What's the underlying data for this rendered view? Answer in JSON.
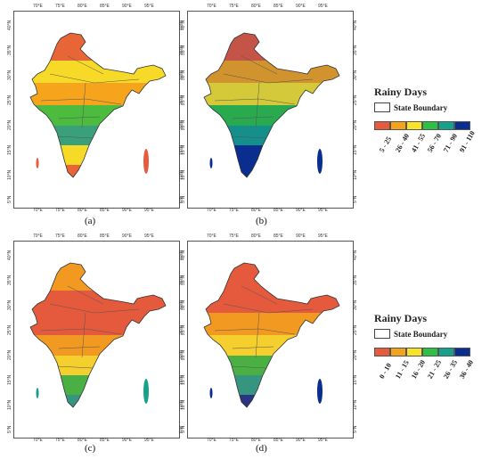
{
  "panels": [
    {
      "label": "(a)",
      "lon_ticks": [
        "70°E",
        "75°E",
        "80°E",
        "85°E",
        "90°E",
        "95°E"
      ],
      "lat_ticks": [
        "40°N",
        "35°N",
        "30°N",
        "25°N",
        "20°N",
        "15°N",
        "10°N",
        "5°N"
      ],
      "fill": "#f4a41c",
      "zones": [
        "#e55b3c",
        "#f7e42a",
        "#f4a41c",
        "#2fbf44",
        "#17a08c",
        "#f7e42a",
        "#e55b3c"
      ]
    },
    {
      "label": "(b)",
      "lon_ticks": [
        "70°E",
        "75°E",
        "80°E",
        "85°E",
        "90°E",
        "95°E"
      ],
      "lat_ticks": [
        "40°N",
        "35°N",
        "30°N",
        "25°N",
        "20°N",
        "15°N",
        "10°N",
        "5°N"
      ],
      "fill": "#0a2e8f",
      "zones": [
        "#e55b3c",
        "#f4a41c",
        "#f7e42a",
        "#2fbf44",
        "#17a08c",
        "#0a2e8f",
        "#0a2e8f"
      ]
    },
    {
      "label": "(c)",
      "lon_ticks": [
        "70°E",
        "75°E",
        "80°E",
        "85°E",
        "90°E",
        "95°E"
      ],
      "lat_ticks": [
        "40°N",
        "35°N",
        "30°N",
        "25°N",
        "20°N",
        "15°N",
        "10°N",
        "5°N"
      ],
      "fill": "#e55b3c",
      "zones": [
        "#f4a41c",
        "#e55b3c",
        "#e55b3c",
        "#f4a41c",
        "#f7e42a",
        "#2fbf44",
        "#17a08c"
      ]
    },
    {
      "label": "(d)",
      "lon_ticks": [
        "70°E",
        "75°E",
        "80°E",
        "85°E",
        "90°E",
        "95°E"
      ],
      "lat_ticks": [
        "40°N",
        "35°N",
        "30°N",
        "25°N",
        "20°N",
        "15°N",
        "10°N",
        "5°N"
      ],
      "fill": "#e55b3c",
      "zones": [
        "#e55b3c",
        "#e55b3c",
        "#f4a41c",
        "#f7e42a",
        "#2fbf44",
        "#17a08c",
        "#0a2e8f"
      ]
    }
  ],
  "legends": [
    {
      "title": "Rainy Days",
      "state_boundary": "State Boundary",
      "bins": [
        "5 - 25",
        "26 - 40",
        "41 - 55",
        "56 - 70",
        "71 - 90",
        "91 - 110"
      ],
      "colors": [
        "#e55b3c",
        "#f4a41c",
        "#f7e42a",
        "#2fbf44",
        "#17a08c",
        "#0a2e8f"
      ]
    },
    {
      "title": "Rainy Days",
      "state_boundary": "State Boundary",
      "bins": [
        "0 - 10",
        "11 - 15",
        "16 - 20",
        "21 - 25",
        "26 - 35",
        "36 - 40"
      ],
      "colors": [
        "#e55b3c",
        "#f4a41c",
        "#f7e42a",
        "#2fbf44",
        "#17a08c",
        "#0a2e8f"
      ]
    }
  ]
}
